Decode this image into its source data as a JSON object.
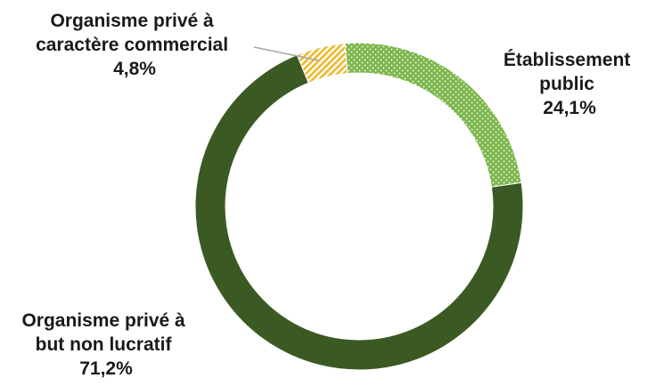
{
  "chart_data": {
    "type": "pie",
    "variant": "donut",
    "slices": [
      {
        "label": [
          "Établissement",
          "public"
        ],
        "value": 24.1,
        "value_label": "24,1%",
        "color": "#7ab648",
        "pattern": "dots"
      },
      {
        "label": [
          "Organisme privé à",
          "but non lucratif"
        ],
        "value": 71.2,
        "value_label": "71,2%",
        "color": "#3b5a23",
        "pattern": "solid"
      },
      {
        "label": [
          "Organisme privé à",
          "caractère commercial"
        ],
        "value": 4.8,
        "value_label": "4,8%",
        "color": "#f0b828",
        "pattern": "hatch"
      }
    ],
    "legend": "none",
    "leader_line_on": "Organisme privé à caractère commercial"
  }
}
